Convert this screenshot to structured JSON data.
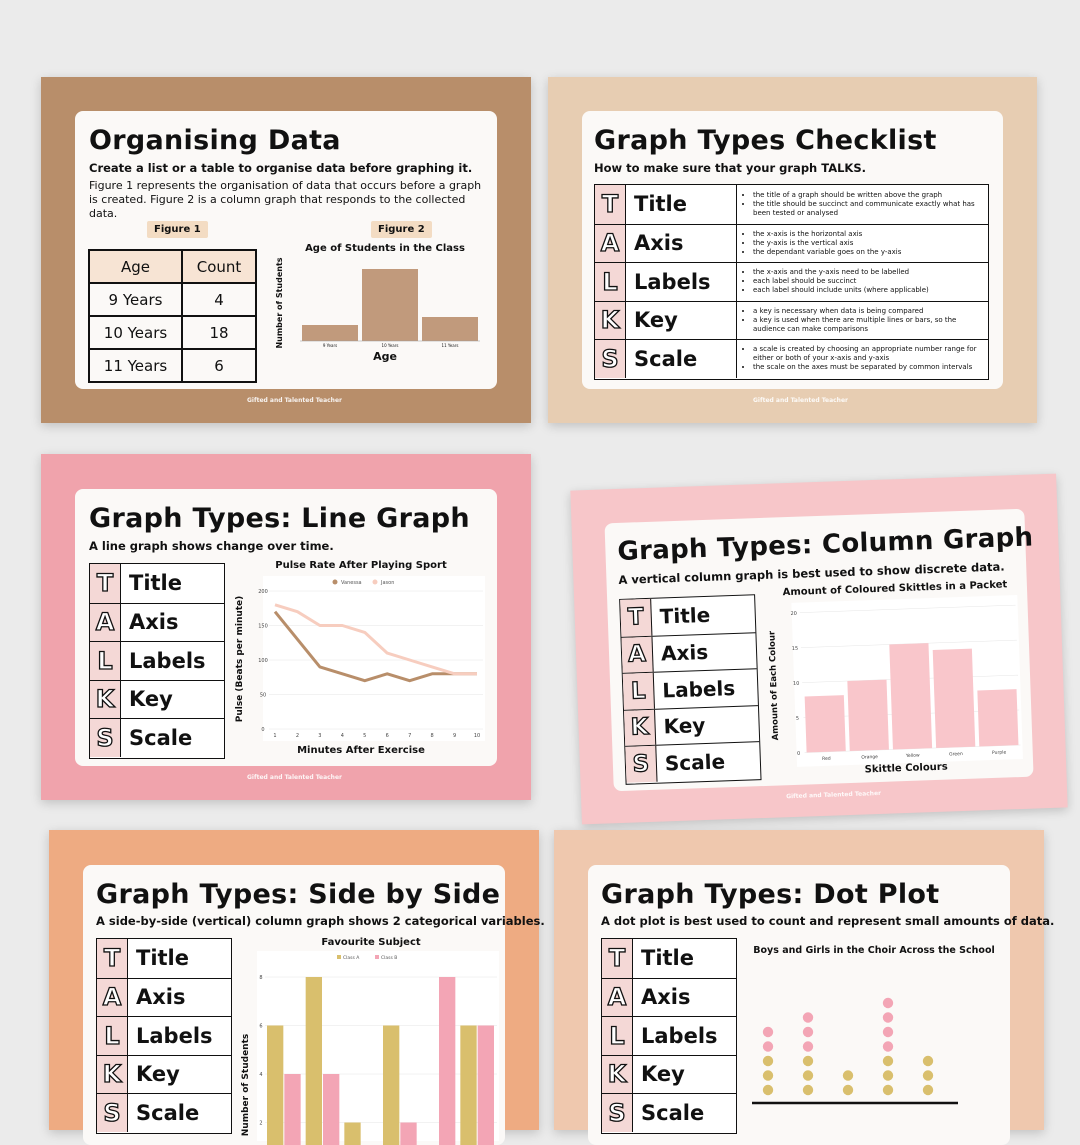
{
  "watermark": "Gifted and Talented Teacher",
  "talks_letters": [
    "T",
    "A",
    "L",
    "K",
    "S"
  ],
  "talks_words": [
    "Title",
    "Axis",
    "Labels",
    "Key",
    "Scale"
  ],
  "colors": {
    "background": "#ebebeb",
    "tan": "#b88e6a",
    "beige": "#e7cdb2",
    "pink": "#f0a3ac",
    "light_pink": "#f7c6c9",
    "peach": "#eeab82",
    "light_peach": "#efc8ae",
    "bar_tan": "#c19a7c",
    "bar_pink": "#f9c6cb",
    "side_gold": "#d9bf6d",
    "side_pink": "#f3a5b5"
  },
  "poster1": {
    "title": "Organising Data",
    "subtitle": "Create a list or a table to organise data before graphing it.",
    "body": "Figure 1 represents the organisation of data that occurs before a graph is created. Figure 2 is a column graph that responds to the collected data.",
    "figure1_label": "Figure 1",
    "figure2_label": "Figure 2",
    "table": {
      "headers": [
        "Age",
        "Count"
      ],
      "rows": [
        [
          "9 Years",
          "4"
        ],
        [
          "10 Years",
          "18"
        ],
        [
          "11 Years",
          "6"
        ]
      ]
    }
  },
  "poster2": {
    "title": "Graph Types Checklist",
    "subtitle": "How to make sure that your graph TALKS.",
    "descriptions": [
      [
        "the title of a graph should be written above the graph",
        "the title should be succinct and communicate exactly what has been tested or analysed"
      ],
      [
        "the x-axis is the horizontal axis",
        "the y-axis is the vertical axis",
        "the dependant variable goes on the y-axis"
      ],
      [
        "the x-axis and the y-axis need to be labelled",
        "each label should be succinct",
        "each label should include units (where applicable)"
      ],
      [
        "a key is necessary when data is being compared",
        "a key is used when there are multiple lines or bars, so the audience can make comparisons"
      ],
      [
        "a scale is created by choosing an appropriate number range for either or both of your x-axis and y-axis",
        "the scale on the axes must be separated by common intervals"
      ]
    ]
  },
  "poster3": {
    "title": "Graph Types: Line Graph",
    "subtitle": "A line graph shows change over time."
  },
  "poster4": {
    "title": "Graph Types: Column Graph",
    "subtitle": "A vertical column graph is best used to show discrete data."
  },
  "poster5": {
    "title": "Graph Types: Side by Side",
    "subtitle": "A side-by-side (vertical) column graph shows 2 categorical variables."
  },
  "poster6": {
    "title": "Graph Types: Dot Plot",
    "subtitle": "A dot plot is best used to count and represent small amounts of data."
  },
  "chart_data": [
    {
      "id": "age",
      "type": "bar",
      "title": "Age of Students in the Class",
      "xlabel": "Age",
      "ylabel": "Number of Students",
      "categories": [
        "9 Years",
        "10 Years",
        "11 Years"
      ],
      "values": [
        4,
        18,
        6
      ],
      "ylim": [
        0,
        20
      ]
    },
    {
      "id": "pulse",
      "type": "line",
      "title": "Pulse Rate After Playing Sport",
      "xlabel": "Minutes After Exercise",
      "ylabel": "Pulse (Beats per minute)",
      "x": [
        1,
        2,
        3,
        4,
        5,
        6,
        7,
        8,
        9,
        10
      ],
      "ylim": [
        0,
        200
      ],
      "yticks": [
        0,
        50,
        100,
        150,
        200
      ],
      "legend": "top",
      "series": [
        {
          "name": "Vanessa",
          "color": "#b88e6a",
          "values": [
            170,
            130,
            90,
            80,
            70,
            80,
            70,
            80,
            80,
            80
          ]
        },
        {
          "name": "Jason",
          "color": "#f7cdbf",
          "values": [
            180,
            170,
            150,
            150,
            140,
            110,
            100,
            90,
            80,
            80
          ]
        }
      ]
    },
    {
      "id": "skittles",
      "type": "bar",
      "title": "Amount of Coloured Skittles in a Packet",
      "xlabel": "Skittle Colours",
      "ylabel": "Amount of Each Colour",
      "categories": [
        "Red",
        "Orange",
        "Yellow",
        "Green",
        "Purple"
      ],
      "values": [
        8,
        10,
        15,
        14,
        8
      ],
      "ylim": [
        0,
        20
      ],
      "yticks": [
        0,
        5,
        10,
        15,
        20
      ]
    },
    {
      "id": "subject",
      "type": "bar",
      "title": "Favourite Subject",
      "ylabel": "Number of Students",
      "ylim": [
        0,
        8
      ],
      "yticks": [
        2,
        4,
        6,
        8
      ],
      "legend": "top",
      "series": [
        {
          "name": "Class A",
          "color": "#d9bf6d",
          "values": [
            6,
            8,
            2,
            6,
            0,
            6
          ]
        },
        {
          "name": "Class B",
          "color": "#f3a5b5",
          "values": [
            4,
            4,
            0,
            2,
            8,
            6
          ]
        }
      ]
    },
    {
      "id": "choir",
      "type": "scatter",
      "title": "Boys and Girls in the Choir Across the School",
      "columns": [
        {
          "count": 5
        },
        {
          "count": 6
        },
        {
          "count": 2
        },
        {
          "count": 7
        },
        {
          "count": 3
        }
      ]
    }
  ]
}
